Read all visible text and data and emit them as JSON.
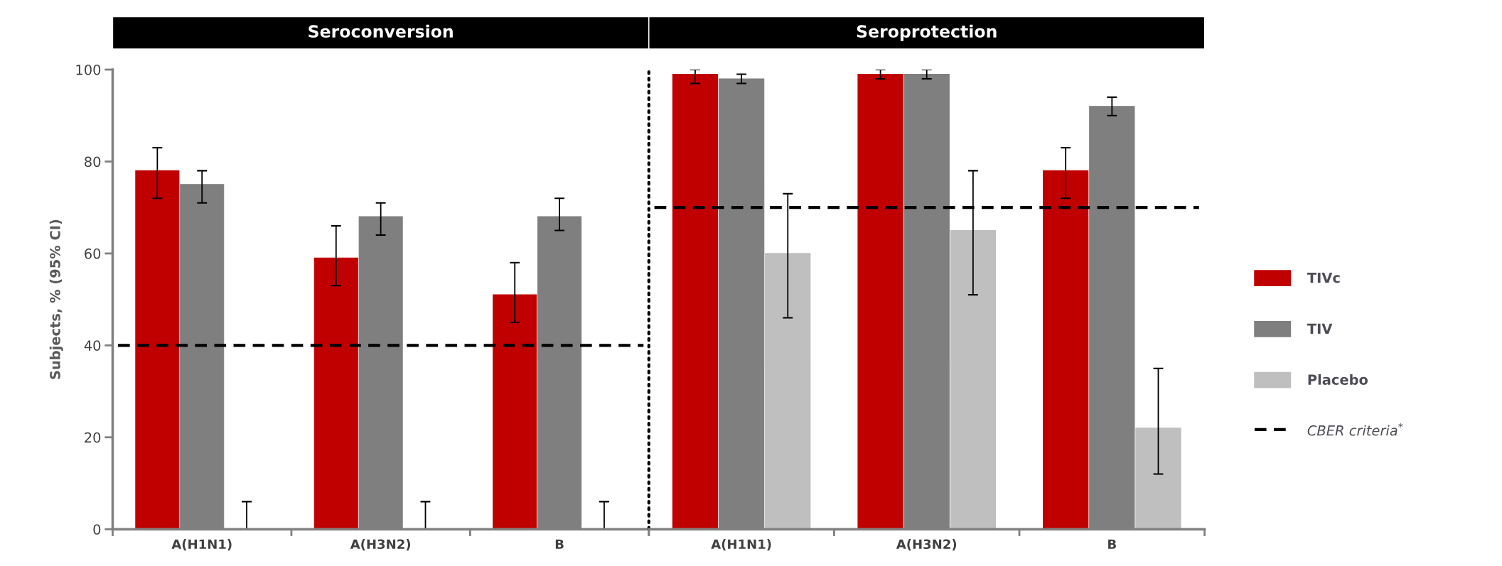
{
  "chart_data": [
    {
      "type": "bar",
      "title": "Seroconversion",
      "ylabel": "Subjects, % (95% CI)",
      "categories": [
        "A(H1N1)",
        "A(H3N2)",
        "B"
      ],
      "ylim": [
        0,
        100
      ],
      "yticks": [
        0,
        20,
        40,
        60,
        80,
        100
      ],
      "grid": false,
      "legend": false,
      "series": [
        {
          "color": "#c00000",
          "values": [
            78,
            59,
            51
          ],
          "errors": [
            [
              72,
              83
            ],
            [
              53,
              66
            ],
            [
              45,
              58
            ]
          ]
        },
        {
          "color": "#7f7f7f",
          "values": [
            75,
            68,
            68
          ],
          "errors": [
            [
              71,
              78
            ],
            [
              64,
              71
            ],
            [
              65,
              72
            ]
          ]
        },
        {
          "color": "#bfbfbf",
          "values": [
            0,
            0,
            0
          ],
          "errors": [
            [
              0,
              6
            ],
            [
              0,
              6
            ],
            [
              0,
              6
            ]
          ]
        }
      ],
      "ref_lines": [
        {
          "axis": "y",
          "value": 40,
          "color": "#000000",
          "line_style": "dashed"
        }
      ]
    },
    {
      "type": "bar",
      "title": "Seroprotection",
      "categories": [
        "A(H1N1)",
        "A(H3N2)",
        "B"
      ],
      "ylim": [
        0,
        100
      ],
      "tick_labels": "x",
      "grid": false,
      "legend": "right",
      "series": [
        {
          "name": "TIVc",
          "color": "#c00000",
          "values": [
            99,
            99,
            78
          ],
          "errors": [
            [
              97,
              100
            ],
            [
              98,
              100
            ],
            [
              72,
              83
            ]
          ]
        },
        {
          "name": "TIV",
          "color": "#7f7f7f",
          "values": [
            98,
            99,
            92
          ],
          "errors": [
            [
              97,
              99
            ],
            [
              98,
              100
            ],
            [
              90,
              94
            ]
          ]
        },
        {
          "name": "Placebo",
          "color": "#bfbfbf",
          "values": [
            60,
            65,
            22
          ],
          "errors": [
            [
              46,
              73
            ],
            [
              51,
              78
            ],
            [
              12,
              35
            ]
          ]
        }
      ],
      "ref_lines": [
        {
          "axis": "y",
          "value": 70,
          "label": "CBER criteria$^{*}$",
          "color": "#000000",
          "line_style": "dashed"
        }
      ]
    }
  ]
}
